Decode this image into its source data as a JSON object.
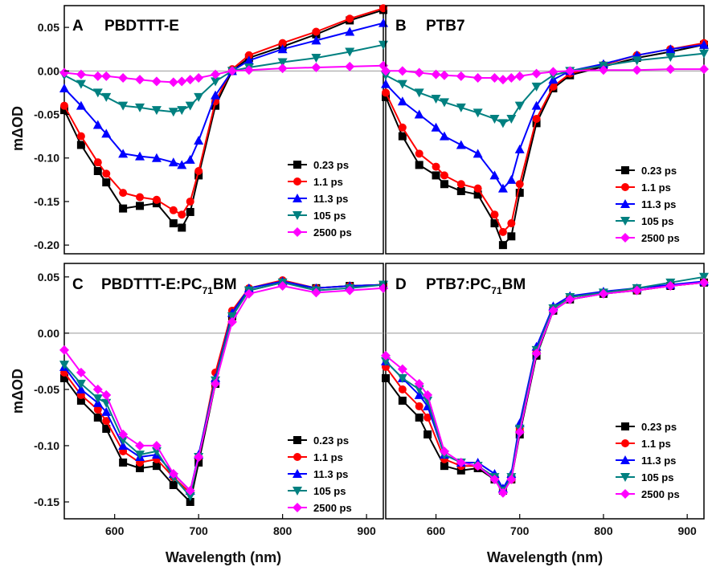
{
  "figure": {
    "xlabel": "Wavelength (nm)",
    "ylabel": "mΔOD"
  },
  "series_colors": [
    "#000000",
    "#ff0000",
    "#0000ff",
    "#008080",
    "#ff00ff"
  ],
  "chart_data": [
    {
      "type": "line",
      "panel_letter": "A",
      "title": "PBDTTT-E",
      "ylabel": "mΔOD",
      "xlabel": "Wavelength (nm)",
      "xlim": [
        540,
        920
      ],
      "ylim": [
        -0.21,
        0.075
      ],
      "yticks": [
        "0.05",
        "0.00",
        "-0.05",
        "-0.10",
        "-0.15",
        "-0.20"
      ],
      "xticks": [],
      "legend_position": "lower-right",
      "series": [
        {
          "name": "0.23 ps",
          "marker": "square",
          "x": [
            540,
            560,
            580,
            590,
            610,
            630,
            650,
            670,
            680,
            690,
            700,
            720,
            740,
            760,
            800,
            840,
            880,
            920
          ],
          "y": [
            -0.045,
            -0.085,
            -0.115,
            -0.128,
            -0.158,
            -0.155,
            -0.152,
            -0.175,
            -0.18,
            -0.162,
            -0.12,
            -0.04,
            0.0,
            0.015,
            0.028,
            0.042,
            0.058,
            0.07
          ]
        },
        {
          "name": "1.1 ps",
          "marker": "circle",
          "x": [
            540,
            560,
            580,
            590,
            610,
            630,
            650,
            670,
            680,
            690,
            700,
            720,
            740,
            760,
            800,
            840,
            880,
            920
          ],
          "y": [
            -0.04,
            -0.075,
            -0.105,
            -0.118,
            -0.14,
            -0.145,
            -0.148,
            -0.16,
            -0.165,
            -0.15,
            -0.115,
            -0.035,
            0.002,
            0.018,
            0.032,
            0.045,
            0.06,
            0.072
          ]
        },
        {
          "name": "11.3 ps",
          "marker": "triangle-up",
          "x": [
            540,
            560,
            580,
            590,
            610,
            630,
            650,
            670,
            680,
            690,
            700,
            720,
            740,
            760,
            800,
            840,
            880,
            920
          ],
          "y": [
            -0.02,
            -0.04,
            -0.062,
            -0.072,
            -0.095,
            -0.098,
            -0.1,
            -0.105,
            -0.108,
            -0.102,
            -0.08,
            -0.028,
            0.0,
            0.012,
            0.025,
            0.035,
            0.045,
            0.055
          ]
        },
        {
          "name": "105 ps",
          "marker": "triangle-down",
          "x": [
            540,
            560,
            580,
            590,
            610,
            630,
            650,
            670,
            680,
            690,
            700,
            720,
            740,
            760,
            800,
            840,
            880,
            920
          ],
          "y": [
            -0.005,
            -0.015,
            -0.025,
            -0.03,
            -0.04,
            -0.042,
            -0.045,
            -0.047,
            -0.045,
            -0.04,
            -0.03,
            -0.012,
            0.0,
            0.004,
            0.01,
            0.015,
            0.022,
            0.03
          ]
        },
        {
          "name": "2500 ps",
          "marker": "diamond",
          "x": [
            540,
            560,
            580,
            590,
            610,
            630,
            650,
            670,
            680,
            690,
            700,
            720,
            740,
            760,
            800,
            840,
            880,
            920
          ],
          "y": [
            -0.002,
            -0.004,
            -0.006,
            -0.006,
            -0.008,
            -0.01,
            -0.012,
            -0.013,
            -0.012,
            -0.01,
            -0.008,
            -0.004,
            0.0,
            0.001,
            0.003,
            0.004,
            0.005,
            0.006
          ]
        }
      ]
    },
    {
      "type": "line",
      "panel_letter": "B",
      "title": "PTB7",
      "ylabel": "",
      "xlabel": "Wavelength (nm)",
      "xlim": [
        540,
        920
      ],
      "ylim": [
        -0.21,
        0.075
      ],
      "yticks": [],
      "xticks": [],
      "legend_position": "lower-right",
      "series": [
        {
          "name": "0.23 ps",
          "marker": "square",
          "x": [
            540,
            560,
            580,
            600,
            610,
            630,
            650,
            670,
            680,
            690,
            700,
            720,
            740,
            760,
            800,
            840,
            880,
            920
          ],
          "y": [
            -0.03,
            -0.075,
            -0.108,
            -0.12,
            -0.13,
            -0.138,
            -0.142,
            -0.175,
            -0.2,
            -0.19,
            -0.14,
            -0.06,
            -0.02,
            -0.005,
            0.005,
            0.015,
            0.022,
            0.03
          ]
        },
        {
          "name": "1.1 ps",
          "marker": "circle",
          "x": [
            540,
            560,
            580,
            600,
            610,
            630,
            650,
            670,
            680,
            690,
            700,
            720,
            740,
            760,
            800,
            840,
            880,
            920
          ],
          "y": [
            -0.025,
            -0.065,
            -0.095,
            -0.11,
            -0.12,
            -0.13,
            -0.135,
            -0.165,
            -0.185,
            -0.175,
            -0.13,
            -0.055,
            -0.018,
            -0.003,
            0.007,
            0.018,
            0.025,
            0.032
          ]
        },
        {
          "name": "11.3 ps",
          "marker": "triangle-up",
          "x": [
            540,
            560,
            580,
            600,
            610,
            630,
            650,
            670,
            680,
            690,
            700,
            720,
            740,
            760,
            800,
            840,
            880,
            920
          ],
          "y": [
            -0.015,
            -0.035,
            -0.05,
            -0.065,
            -0.075,
            -0.085,
            -0.095,
            -0.12,
            -0.135,
            -0.125,
            -0.09,
            -0.04,
            -0.01,
            0.0,
            0.008,
            0.018,
            0.025,
            0.03
          ]
        },
        {
          "name": "105 ps",
          "marker": "triangle-down",
          "x": [
            540,
            560,
            580,
            600,
            610,
            630,
            650,
            670,
            680,
            690,
            700,
            720,
            740,
            760,
            800,
            840,
            880,
            920
          ],
          "y": [
            -0.005,
            -0.015,
            -0.025,
            -0.032,
            -0.036,
            -0.042,
            -0.048,
            -0.055,
            -0.06,
            -0.055,
            -0.04,
            -0.018,
            -0.005,
            0.0,
            0.006,
            0.012,
            0.016,
            0.02
          ]
        },
        {
          "name": "2500 ps",
          "marker": "diamond",
          "x": [
            540,
            560,
            580,
            600,
            610,
            630,
            650,
            670,
            680,
            690,
            700,
            720,
            740,
            760,
            800,
            840,
            880,
            920
          ],
          "y": [
            0.0,
            0.0,
            -0.002,
            -0.004,
            -0.005,
            -0.006,
            -0.008,
            -0.008,
            -0.01,
            -0.008,
            -0.006,
            -0.003,
            -0.001,
            0.0,
            0.001,
            0.001,
            0.002,
            0.002
          ]
        }
      ]
    },
    {
      "type": "line",
      "panel_letter": "C",
      "title_main": "PBDTTT-E:PC",
      "title_sub": "71",
      "title_tail": "BM",
      "ylabel": "mΔOD",
      "xlabel": "Wavelength (nm)",
      "xlim": [
        540,
        920
      ],
      "ylim": [
        -0.165,
        0.062
      ],
      "yticks": [
        "0.05",
        "0.00",
        "-0.05",
        "-0.10",
        "-0.15"
      ],
      "xticks": [
        "600",
        "700",
        "800",
        "900"
      ],
      "legend_position": "lower-right",
      "series": [
        {
          "name": "0.23 ps",
          "marker": "square",
          "x": [
            540,
            560,
            580,
            590,
            610,
            630,
            650,
            670,
            690,
            700,
            720,
            740,
            760,
            800,
            840,
            880,
            920
          ],
          "y": [
            -0.04,
            -0.06,
            -0.075,
            -0.085,
            -0.115,
            -0.12,
            -0.118,
            -0.135,
            -0.15,
            -0.115,
            -0.045,
            0.015,
            0.038,
            0.045,
            0.04,
            0.042,
            0.043
          ]
        },
        {
          "name": "1.1 ps",
          "marker": "circle",
          "x": [
            540,
            560,
            580,
            590,
            610,
            630,
            650,
            670,
            690,
            700,
            720,
            740,
            760,
            800,
            840,
            880,
            920
          ],
          "y": [
            -0.035,
            -0.055,
            -0.068,
            -0.078,
            -0.105,
            -0.115,
            -0.112,
            -0.128,
            -0.142,
            -0.11,
            -0.035,
            0.02,
            0.04,
            0.047,
            0.04,
            0.042,
            0.043
          ]
        },
        {
          "name": "11.3 ps",
          "marker": "triangle-up",
          "x": [
            540,
            560,
            580,
            590,
            610,
            630,
            650,
            670,
            690,
            700,
            720,
            740,
            760,
            800,
            840,
            880,
            920
          ],
          "y": [
            -0.03,
            -0.05,
            -0.062,
            -0.07,
            -0.1,
            -0.11,
            -0.108,
            -0.125,
            -0.14,
            -0.108,
            -0.04,
            0.018,
            0.04,
            0.046,
            0.04,
            0.042,
            0.043
          ]
        },
        {
          "name": "105  ps",
          "marker": "triangle-down",
          "x": [
            540,
            560,
            580,
            590,
            610,
            630,
            650,
            670,
            690,
            700,
            720,
            740,
            760,
            800,
            840,
            880,
            920
          ],
          "y": [
            -0.028,
            -0.045,
            -0.058,
            -0.062,
            -0.095,
            -0.108,
            -0.105,
            -0.128,
            -0.145,
            -0.11,
            -0.042,
            0.015,
            0.038,
            0.045,
            0.038,
            0.04,
            0.043
          ]
        },
        {
          "name": "2500 ps",
          "marker": "diamond",
          "x": [
            540,
            560,
            580,
            590,
            610,
            630,
            650,
            670,
            690,
            700,
            720,
            740,
            760,
            800,
            840,
            880,
            920
          ],
          "y": [
            -0.015,
            -0.035,
            -0.05,
            -0.055,
            -0.09,
            -0.1,
            -0.1,
            -0.125,
            -0.14,
            -0.11,
            -0.045,
            0.01,
            0.035,
            0.042,
            0.036,
            0.038,
            0.04
          ]
        }
      ]
    },
    {
      "type": "line",
      "panel_letter": "D",
      "title_main": "PTB7:PC",
      "title_sub": "71",
      "title_tail": "BM",
      "ylabel": "",
      "xlabel": "Wavelength (nm)",
      "xlim": [
        540,
        920
      ],
      "ylim": [
        -0.165,
        0.062
      ],
      "yticks": [],
      "xticks": [
        "600",
        "700",
        "800",
        "900"
      ],
      "legend_position": "lower-right",
      "series": [
        {
          "name": "0.23 ps",
          "marker": "square",
          "x": [
            540,
            560,
            580,
            590,
            610,
            630,
            650,
            670,
            680,
            690,
            700,
            720,
            740,
            760,
            800,
            840,
            880,
            920
          ],
          "y": [
            -0.04,
            -0.06,
            -0.075,
            -0.09,
            -0.118,
            -0.122,
            -0.12,
            -0.13,
            -0.14,
            -0.13,
            -0.09,
            -0.02,
            0.02,
            0.03,
            0.035,
            0.038,
            0.042,
            0.045
          ]
        },
        {
          "name": "1.1 ps",
          "marker": "circle",
          "x": [
            540,
            560,
            580,
            590,
            610,
            630,
            650,
            670,
            680,
            690,
            700,
            720,
            740,
            760,
            800,
            840,
            880,
            920
          ],
          "y": [
            -0.03,
            -0.05,
            -0.065,
            -0.075,
            -0.112,
            -0.118,
            -0.118,
            -0.128,
            -0.14,
            -0.13,
            -0.085,
            -0.015,
            0.022,
            0.032,
            0.036,
            0.038,
            0.042,
            0.045
          ]
        },
        {
          "name": "11.3 ps",
          "marker": "triangle-up",
          "x": [
            540,
            560,
            580,
            590,
            610,
            630,
            650,
            670,
            680,
            690,
            700,
            720,
            740,
            760,
            800,
            840,
            880,
            920
          ],
          "y": [
            -0.025,
            -0.04,
            -0.055,
            -0.065,
            -0.108,
            -0.115,
            -0.115,
            -0.125,
            -0.138,
            -0.125,
            -0.08,
            -0.012,
            0.024,
            0.033,
            0.037,
            0.04,
            0.043,
            0.046
          ]
        },
        {
          "name": "105 ps",
          "marker": "triangle-down",
          "x": [
            540,
            560,
            580,
            590,
            610,
            630,
            650,
            670,
            680,
            690,
            700,
            720,
            740,
            760,
            800,
            840,
            880,
            920
          ],
          "y": [
            -0.025,
            -0.04,
            -0.05,
            -0.06,
            -0.108,
            -0.115,
            -0.118,
            -0.128,
            -0.14,
            -0.128,
            -0.085,
            -0.015,
            0.022,
            0.032,
            0.036,
            0.04,
            0.045,
            0.05
          ]
        },
        {
          "name": "2500 ps",
          "marker": "diamond",
          "x": [
            540,
            560,
            580,
            590,
            610,
            630,
            650,
            670,
            680,
            690,
            700,
            720,
            740,
            760,
            800,
            840,
            880,
            920
          ],
          "y": [
            -0.02,
            -0.032,
            -0.045,
            -0.055,
            -0.105,
            -0.115,
            -0.118,
            -0.13,
            -0.142,
            -0.13,
            -0.088,
            -0.018,
            0.02,
            0.03,
            0.035,
            0.038,
            0.042,
            0.045
          ]
        }
      ]
    }
  ]
}
